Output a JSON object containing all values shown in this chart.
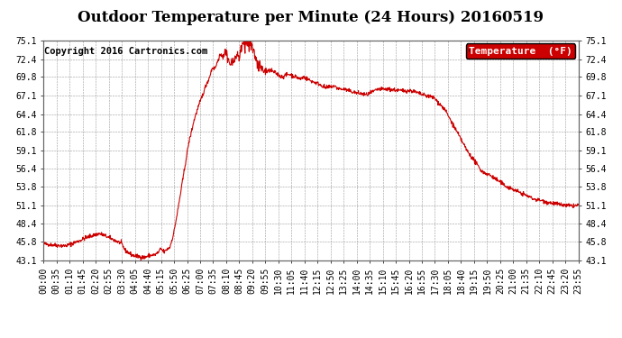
{
  "title": "Outdoor Temperature per Minute (24 Hours) 20160519",
  "copyright": "Copyright 2016 Cartronics.com",
  "legend_label": "Temperature  (°F)",
  "legend_bg": "#cc0000",
  "legend_fg": "#ffffff",
  "line_color": "#cc0000",
  "bg_color": "#ffffff",
  "plot_bg": "#ffffff",
  "grid_color": "#999999",
  "ylim": [
    43.1,
    75.1
  ],
  "yticks": [
    43.1,
    45.8,
    48.4,
    51.1,
    53.8,
    56.4,
    59.1,
    61.8,
    64.4,
    67.1,
    69.8,
    72.4,
    75.1
  ],
  "xtick_labels": [
    "00:00",
    "00:35",
    "01:10",
    "01:45",
    "02:20",
    "02:55",
    "03:30",
    "04:05",
    "04:40",
    "05:15",
    "05:50",
    "06:25",
    "07:00",
    "07:35",
    "08:10",
    "08:45",
    "09:20",
    "09:55",
    "10:30",
    "11:05",
    "11:40",
    "12:15",
    "12:50",
    "13:25",
    "14:00",
    "14:35",
    "15:10",
    "15:45",
    "16:20",
    "16:55",
    "17:30",
    "18:05",
    "18:40",
    "19:15",
    "19:50",
    "20:25",
    "21:00",
    "21:35",
    "22:10",
    "22:45",
    "23:20",
    "23:55"
  ],
  "title_fontsize": 12,
  "tick_fontsize": 7,
  "copyright_fontsize": 7.5
}
